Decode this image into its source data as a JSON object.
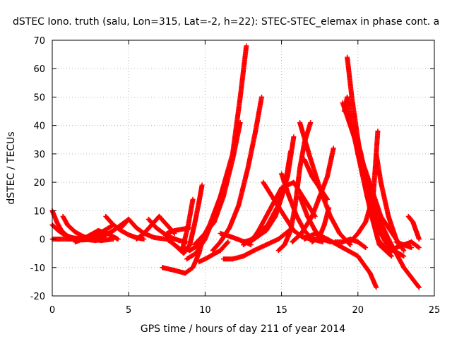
{
  "chart_data": {
    "type": "scatter",
    "title": "dSTEC Iono. truth (salu, Lon=315, Lat=-2, h=22): STEC-STEC_elemax in phase cont. a",
    "xlabel": "GPS time / hours of day 211 of year 2014",
    "ylabel": "dSTEC  / TECUs",
    "xlim": [
      0,
      25
    ],
    "ylim": [
      -20,
      70
    ],
    "xticks": [
      "0",
      "5",
      "10",
      "15",
      "20",
      "25"
    ],
    "yticks": [
      "-20",
      "-10",
      "0",
      "10",
      "20",
      "30",
      "40",
      "50",
      "60",
      "70"
    ],
    "grid": true,
    "marker": "+",
    "color": "#ff0000",
    "series": [
      {
        "x": [
          0.0,
          0.3,
          0.6,
          1.0,
          1.5,
          2.0,
          3.0
        ],
        "y": [
          10,
          6,
          3,
          1,
          0,
          -0.3,
          0
        ]
      },
      {
        "x": [
          0.0,
          0.4,
          0.8,
          1.3,
          2.0,
          2.8,
          3.5
        ],
        "y": [
          5,
          3,
          1.5,
          0.5,
          0,
          -0.5,
          0
        ]
      },
      {
        "x": [
          0.7,
          1.0,
          1.5,
          2.0,
          2.5,
          3.2,
          4.0
        ],
        "y": [
          8,
          5,
          2.5,
          1,
          0,
          -0.5,
          0
        ]
      },
      {
        "x": [
          0.0,
          1.0,
          2.0,
          2.8,
          3.4,
          4.0
        ],
        "y": [
          0,
          0,
          0,
          1,
          3,
          5
        ]
      },
      {
        "x": [
          1.5,
          2.0,
          2.5,
          3.0,
          3.6,
          4.3
        ],
        "y": [
          -1,
          0,
          1.5,
          3,
          2,
          0
        ]
      },
      {
        "x": [
          2.5,
          3.0,
          3.5,
          4.0,
          4.5,
          5.0
        ],
        "y": [
          0,
          0.5,
          1.5,
          3,
          5,
          7
        ]
      },
      {
        "x": [
          4.5,
          5.0,
          5.5,
          6.0,
          6.7,
          7.5
        ],
        "y": [
          4,
          7,
          4,
          2,
          0.5,
          0
        ]
      },
      {
        "x": [
          3.5,
          4.0,
          4.5,
          5.0,
          5.5,
          6.0
        ],
        "y": [
          8,
          5,
          3,
          1.5,
          0.5,
          0
        ]
      },
      {
        "x": [
          5.5,
          6.0,
          6.5,
          7.0,
          7.5,
          8.0
        ],
        "y": [
          0,
          2,
          5,
          8,
          5,
          2
        ]
      },
      {
        "x": [
          6.3,
          6.8,
          7.3,
          7.8,
          8.3,
          8.8
        ],
        "y": [
          7,
          4,
          2,
          0.5,
          -0.5,
          -1
        ]
      },
      {
        "x": [
          7.5,
          8.0,
          8.5,
          9.0
        ],
        "y": [
          2,
          3,
          3.5,
          4
        ]
      },
      {
        "x": [
          7.2,
          8.0,
          8.7,
          9.2,
          9.6,
          9.9
        ],
        "y": [
          -10,
          -11,
          -12,
          -10,
          -5,
          1
        ]
      },
      {
        "x": [
          7.8,
          8.2,
          8.6,
          9.0,
          9.3,
          9.6,
          9.8
        ],
        "y": [
          -1,
          -3,
          -5,
          -2,
          5,
          13,
          19
        ]
      },
      {
        "x": [
          7.5,
          8.0,
          8.5,
          8.9,
          9.2
        ],
        "y": [
          0,
          -2,
          -4,
          5,
          14
        ]
      },
      {
        "x": [
          8.5,
          9.0,
          9.6,
          10.3,
          11.0,
          11.8,
          12.3,
          12.7
        ],
        "y": [
          -3,
          -4,
          -2,
          5,
          15,
          30,
          50,
          68
        ]
      },
      {
        "x": [
          8.8,
          9.4,
          10.0,
          10.6,
          11.2,
          11.6
        ],
        "y": [
          -7,
          -5,
          0,
          8,
          18,
          25
        ]
      },
      {
        "x": [
          9.3,
          10.0,
          10.6,
          11.2,
          11.8,
          12.3
        ],
        "y": [
          -2,
          2,
          6,
          15,
          28,
          41
        ]
      },
      {
        "x": [
          9.6,
          10.0,
          11.0,
          11.5
        ],
        "y": [
          -8,
          -7,
          -4,
          -1
        ]
      },
      {
        "x": [
          10.5,
          11.0,
          11.6,
          12.2,
          12.8,
          13.3,
          13.7
        ],
        "y": [
          -4,
          -1,
          4,
          12,
          25,
          38,
          50
        ]
      },
      {
        "x": [
          11.2,
          11.8,
          12.5,
          13.2,
          14.0,
          14.8,
          15.5
        ],
        "y": [
          -7,
          -7,
          -6,
          -4,
          -2,
          0,
          3
        ]
      },
      {
        "x": [
          11.0,
          11.6,
          12.1,
          12.6,
          13.0
        ],
        "y": [
          2,
          1,
          0,
          -1,
          -2
        ]
      },
      {
        "x": [
          12.5,
          13.2,
          14.0,
          14.6,
          15.2,
          15.6
        ],
        "y": [
          -1,
          0,
          3,
          8,
          18,
          31
        ]
      },
      {
        "x": [
          12.5,
          13.3,
          14.1,
          14.8,
          15.4,
          15.8
        ],
        "y": [
          -2,
          1,
          5,
          12,
          22,
          36
        ]
      },
      {
        "x": [
          13.0,
          13.5,
          14.2,
          15.0,
          15.8,
          16.5,
          17.2
        ],
        "y": [
          -1,
          3,
          10,
          18,
          20,
          14,
          8
        ]
      },
      {
        "x": [
          13.8,
          14.5,
          15.2,
          15.8,
          16.3,
          16.9,
          17.5
        ],
        "y": [
          20,
          14,
          8,
          3,
          1,
          0,
          0
        ]
      },
      {
        "x": [
          15.0,
          15.5,
          16.0,
          16.5,
          17.0,
          17.7
        ],
        "y": [
          23,
          15,
          8,
          3,
          0,
          -1
        ]
      },
      {
        "x": [
          14.8,
          15.2,
          15.6,
          15.9,
          16.2,
          16.5,
          16.9
        ],
        "y": [
          -4,
          -2,
          3,
          12,
          25,
          34,
          41
        ]
      },
      {
        "x": [
          16.2,
          16.8,
          17.5,
          18.2,
          18.8,
          19.5
        ],
        "y": [
          41,
          30,
          18,
          8,
          2,
          -2
        ]
      },
      {
        "x": [
          16.5,
          17.0,
          17.5,
          18.0
        ],
        "y": [
          28,
          22,
          18,
          14
        ]
      },
      {
        "x": [
          16.2,
          16.7,
          17.2,
          17.7,
          18.2
        ],
        "y": [
          15,
          8,
          3,
          0,
          -1
        ]
      },
      {
        "x": [
          15.7,
          16.3,
          17.0,
          17.5,
          18.0,
          18.4
        ],
        "y": [
          -1,
          2,
          8,
          15,
          22,
          32
        ]
      },
      {
        "x": [
          17.0,
          17.5,
          17.8,
          18.1
        ],
        "y": [
          -1,
          1,
          5,
          11
        ]
      },
      {
        "x": [
          16.5,
          17.2,
          18.0,
          19.0,
          20.0,
          20.8,
          21.2
        ],
        "y": [
          0,
          2,
          0,
          -3,
          -6,
          -12,
          -17
        ]
      },
      {
        "x": [
          18.5,
          19.0,
          19.5,
          20.0,
          20.5
        ],
        "y": [
          -1,
          -1,
          0,
          -1,
          -3
        ]
      },
      {
        "x": [
          19.1,
          19.3,
          19.6,
          20.0,
          20.6,
          21.3,
          22.0
        ],
        "y": [
          45,
          50,
          40,
          30,
          15,
          0,
          -5
        ]
      },
      {
        "x": [
          19.3,
          19.6,
          20.0,
          20.4,
          20.8,
          21.4,
          22.2
        ],
        "y": [
          64,
          50,
          35,
          22,
          10,
          -2,
          -6
        ]
      },
      {
        "x": [
          19.0,
          19.5,
          20.0,
          20.5,
          21.0,
          21.5,
          22.5
        ],
        "y": [
          48,
          40,
          32,
          24,
          16,
          8,
          0
        ]
      },
      {
        "x": [
          19.8,
          20.2,
          20.6,
          21.0,
          21.5,
          22.0,
          23.0
        ],
        "y": [
          38,
          30,
          20,
          10,
          2,
          -3,
          -6
        ]
      },
      {
        "x": [
          20.0,
          20.4,
          20.8,
          21.3,
          22.0,
          23.0,
          24.0
        ],
        "y": [
          30,
          22,
          15,
          8,
          0,
          -10,
          -17
        ]
      },
      {
        "x": [
          19.5,
          20.0,
          20.5,
          21.0,
          21.3
        ],
        "y": [
          -1,
          2,
          6,
          15,
          38
        ]
      },
      {
        "x": [
          21.2,
          21.5,
          22.0,
          22.5,
          23.0
        ],
        "y": [
          30,
          20,
          8,
          0,
          -4
        ]
      },
      {
        "x": [
          22.0,
          22.5,
          23.0,
          23.5
        ],
        "y": [
          -5,
          -3,
          -2,
          -3
        ]
      },
      {
        "x": [
          23.3,
          23.6,
          23.8,
          24.0
        ],
        "y": [
          8,
          6,
          3,
          0
        ]
      },
      {
        "x": [
          22.5,
          23.0,
          23.5,
          24.0
        ],
        "y": [
          -1,
          -2,
          -1,
          -3
        ]
      }
    ]
  }
}
